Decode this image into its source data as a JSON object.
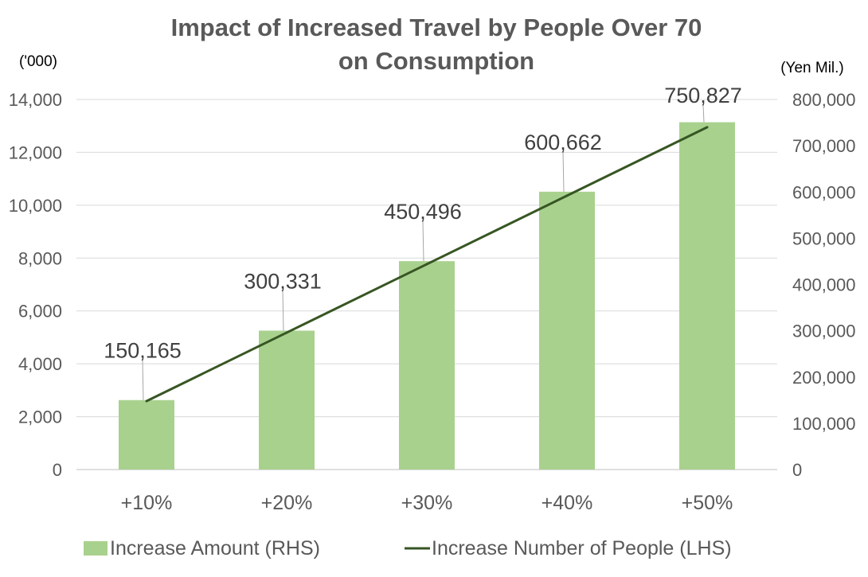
{
  "chart_data": {
    "type": "bar+line",
    "title_lines": [
      "Impact of Increased Travel by People Over 70",
      "on Consumption"
    ],
    "y_left_unit": "('000)",
    "y_right_unit": "(Yen Mil.)",
    "categories": [
      "+10%",
      "+20%",
      "+30%",
      "+40%",
      "+50%"
    ],
    "y_left": {
      "range": [
        0,
        14000
      ],
      "ticks": [
        "0",
        "2,000",
        "4,000",
        "6,000",
        "8,000",
        "10,000",
        "12,000",
        "14,000"
      ]
    },
    "y_right": {
      "range": [
        0,
        800000
      ],
      "ticks": [
        "0",
        "100,000",
        "200,000",
        "300,000",
        "400,000",
        "500,000",
        "600,000",
        "700,000",
        "800,000"
      ]
    },
    "grid": true,
    "legend_position": "bottom",
    "series": [
      {
        "name": "Increase Amount (RHS)",
        "type": "bar",
        "axis": "right",
        "color": "#a9d18e",
        "values": [
          150165,
          300331,
          450496,
          600662,
          750827
        ],
        "labels": [
          "150,165",
          "300,331",
          "450,496",
          "600,662",
          "750,827"
        ]
      },
      {
        "name": "Increase Number of People (LHS)",
        "type": "line",
        "axis": "left",
        "color": "#375623",
        "values": [
          2590,
          5180,
          7770,
          10360,
          12950
        ]
      }
    ]
  }
}
